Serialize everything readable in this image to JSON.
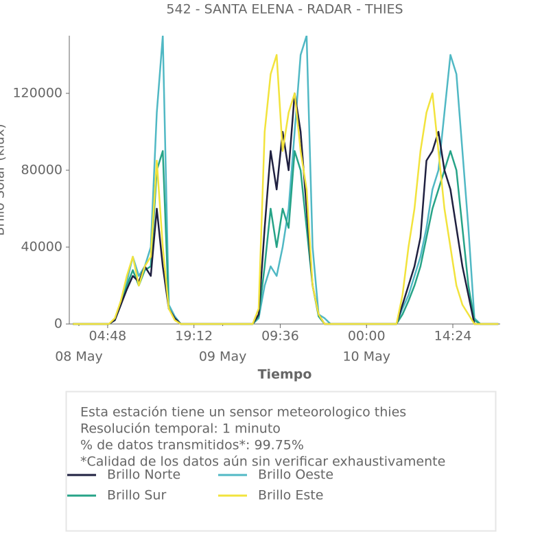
{
  "chart_data": {
    "type": "line",
    "title": "542 - SANTA ELENA - RADAR - THIES",
    "x_label": "Tiempo",
    "y_label": "Brillo Solar (klux)",
    "x": [
      -1,
      0,
      1,
      2,
      3,
      4,
      5,
      6,
      7,
      8,
      9,
      10,
      11,
      12,
      13,
      14,
      15,
      16,
      17,
      18,
      19,
      20,
      21,
      22,
      23,
      24,
      25,
      26,
      27,
      28,
      29,
      30,
      31,
      32,
      33,
      34,
      35,
      36,
      37,
      38,
      39,
      40,
      41,
      42,
      43,
      44,
      45,
      46,
      47,
      48,
      49,
      50,
      51,
      52,
      53,
      54,
      55,
      56,
      57,
      58,
      59,
      60,
      61,
      62,
      63,
      64,
      65,
      66,
      67,
      68,
      69,
      70
    ],
    "series": [
      {
        "name": "Brillo Norte",
        "color": "#1f2040",
        "values": [
          0,
          0,
          0,
          0,
          0,
          0,
          0,
          2000,
          10000,
          18000,
          25000,
          22000,
          30000,
          25000,
          60000,
          30000,
          8000,
          3000,
          0,
          0,
          0,
          0,
          0,
          0,
          0,
          0,
          0,
          0,
          0,
          0,
          0,
          5000,
          50000,
          90000,
          70000,
          100000,
          80000,
          120000,
          100000,
          60000,
          20000,
          5000,
          0,
          0,
          0,
          0,
          0,
          0,
          0,
          0,
          0,
          0,
          0,
          0,
          0,
          10000,
          20000,
          30000,
          45000,
          85000,
          90000,
          100000,
          80000,
          70000,
          50000,
          30000,
          15000,
          0,
          0,
          0,
          0,
          0
        ]
      },
      {
        "name": "Brillo Oeste",
        "color": "#50b8c4",
        "values": [
          0,
          0,
          0,
          0,
          0,
          0,
          0,
          2000,
          12000,
          22000,
          35000,
          25000,
          30000,
          40000,
          110000,
          150000,
          10000,
          4000,
          0,
          0,
          0,
          0,
          0,
          0,
          0,
          0,
          0,
          0,
          0,
          0,
          0,
          3000,
          20000,
          30000,
          25000,
          40000,
          60000,
          100000,
          140000,
          150000,
          40000,
          5000,
          3000,
          0,
          0,
          0,
          0,
          0,
          0,
          0,
          0,
          0,
          0,
          0,
          0,
          8000,
          15000,
          25000,
          35000,
          50000,
          70000,
          80000,
          110000,
          140000,
          130000,
          90000,
          50000,
          3000,
          0,
          0,
          0,
          0
        ]
      },
      {
        "name": "Brillo Sur",
        "color": "#26a387",
        "values": [
          0,
          0,
          0,
          0,
          0,
          0,
          0,
          2000,
          10000,
          20000,
          28000,
          20000,
          28000,
          30000,
          80000,
          90000,
          8000,
          3000,
          0,
          0,
          0,
          0,
          0,
          0,
          0,
          0,
          0,
          0,
          0,
          0,
          0,
          4000,
          30000,
          60000,
          40000,
          60000,
          50000,
          90000,
          80000,
          50000,
          20000,
          4000,
          0,
          0,
          0,
          0,
          0,
          0,
          0,
          0,
          0,
          0,
          0,
          0,
          0,
          5000,
          12000,
          20000,
          30000,
          45000,
          60000,
          70000,
          80000,
          90000,
          80000,
          50000,
          20000,
          2000,
          0,
          0,
          0,
          0
        ]
      },
      {
        "name": "Brillo Este",
        "color": "#f2e33c",
        "values": [
          0,
          0,
          0,
          0,
          0,
          0,
          0,
          3000,
          12000,
          25000,
          35000,
          20000,
          30000,
          35000,
          85000,
          40000,
          8000,
          2000,
          0,
          0,
          0,
          0,
          0,
          0,
          0,
          0,
          0,
          0,
          0,
          0,
          0,
          8000,
          100000,
          130000,
          140000,
          90000,
          110000,
          120000,
          90000,
          70000,
          20000,
          5000,
          0,
          0,
          0,
          0,
          0,
          0,
          0,
          0,
          0,
          0,
          0,
          0,
          0,
          15000,
          40000,
          60000,
          90000,
          110000,
          120000,
          90000,
          60000,
          40000,
          20000,
          10000,
          5000,
          0,
          0,
          0,
          0,
          0
        ]
      }
    ],
    "xlim": [
      -1.6,
      70.3
    ],
    "xticks": [
      {
        "value": 4.8,
        "label": "04:48"
      },
      {
        "value": 19.2,
        "label": "19:12"
      },
      {
        "value": 33.6,
        "label": "09:36"
      },
      {
        "value": 48,
        "label": "00:00"
      },
      {
        "value": 62.4,
        "label": "14:24"
      }
    ],
    "date_ticks": [
      {
        "value": 0,
        "label": "08 May"
      },
      {
        "value": 24,
        "label": "09 May"
      },
      {
        "value": 48,
        "label": "10 May"
      }
    ],
    "ylim": [
      0,
      150000
    ],
    "yticks": [
      0,
      40000,
      80000,
      120000
    ],
    "info": [
      "Esta estación tiene un sensor meteorologico thies",
      "Resolución temporal: 1 minuto",
      "% de datos transmitidos*: 99.75%",
      "*Calidad de los datos aún sin verificar exhaustivamente"
    ]
  }
}
